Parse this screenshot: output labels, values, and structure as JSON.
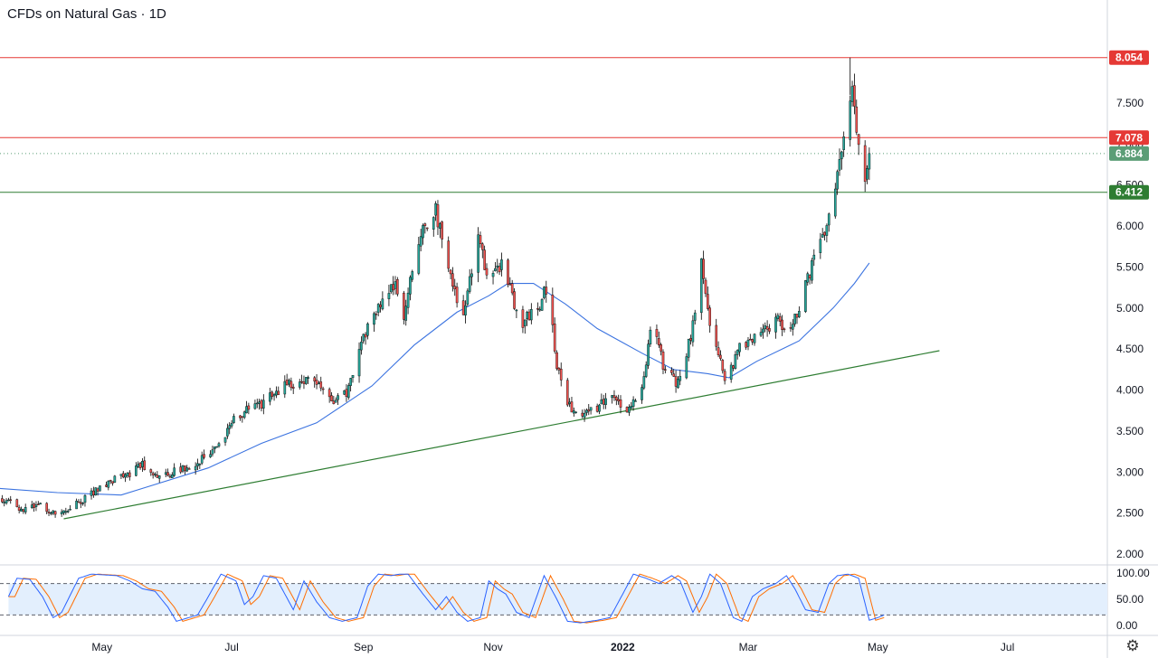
{
  "header": {
    "title": "CFDs on Natural Gas · 1D"
  },
  "colors": {
    "up": "#26a69a",
    "down": "#ef5350",
    "ma": "#3b73e0",
    "trend": "#2e7d32",
    "resistance": "#e53935",
    "support": "#2e7d32",
    "last": "#5b9d76",
    "stoch_k": "#2962ff",
    "stoch_d": "#ff6d00",
    "grid": "#e0e3eb",
    "text": "#131722"
  },
  "chart_data": [
    {
      "type": "candlestick",
      "symbol": "CFDs on Natural Gas",
      "interval": "1D",
      "ylim": [
        2.0,
        8.5
      ],
      "y_ticks": [
        "2.000",
        "2.500",
        "3.000",
        "3.500",
        "4.000",
        "4.500",
        "5.000",
        "5.500",
        "6.000",
        "6.500",
        "7.000",
        "7.500"
      ],
      "x_ticks": [
        {
          "date": "2021-05-01",
          "label": "May"
        },
        {
          "date": "2021-07-01",
          "label": "Jul"
        },
        {
          "date": "2021-09-01",
          "label": "Sep"
        },
        {
          "date": "2021-11-01",
          "label": "Nov"
        },
        {
          "date": "2022-01-01",
          "label": "2022"
        },
        {
          "date": "2022-03-01",
          "label": "Mar"
        },
        {
          "date": "2022-05-01",
          "label": "May"
        },
        {
          "date": "2022-07-01",
          "label": "Jul"
        }
      ],
      "xlim": [
        "2021-03-14",
        "2022-08-17"
      ],
      "price_path": [
        [
          "2021-03-14",
          2.68
        ],
        [
          "2021-03-25",
          2.55
        ],
        [
          "2021-04-02",
          2.62
        ],
        [
          "2021-04-08",
          2.5
        ],
        [
          "2021-04-20",
          2.62
        ],
        [
          "2021-05-05",
          2.9
        ],
        [
          "2021-05-15",
          2.97
        ],
        [
          "2021-05-19",
          3.1
        ],
        [
          "2021-05-28",
          2.95
        ],
        [
          "2021-06-15",
          3.1
        ],
        [
          "2021-06-26",
          3.4
        ],
        [
          "2021-07-04",
          3.7
        ],
        [
          "2021-07-16",
          3.85
        ],
        [
          "2021-07-26",
          4.05
        ],
        [
          "2021-08-06",
          4.15
        ],
        [
          "2021-08-18",
          3.88
        ],
        [
          "2021-08-25",
          4.0
        ],
        [
          "2021-09-01",
          4.65
        ],
        [
          "2021-09-10",
          5.1
        ],
        [
          "2021-09-16",
          5.3
        ],
        [
          "2021-09-20",
          4.8
        ],
        [
          "2021-09-26",
          5.8
        ],
        [
          "2021-10-05",
          6.2
        ],
        [
          "2021-10-12",
          5.4
        ],
        [
          "2021-10-18",
          4.9
        ],
        [
          "2021-10-25",
          5.9
        ],
        [
          "2021-10-30",
          5.3
        ],
        [
          "2021-11-06",
          5.6
        ],
        [
          "2021-11-13",
          4.8
        ],
        [
          "2021-11-22",
          5.0
        ],
        [
          "2021-11-27",
          5.3
        ],
        [
          "2021-12-01",
          4.3
        ],
        [
          "2021-12-05",
          3.85
        ],
        [
          "2021-12-10",
          3.7
        ],
        [
          "2021-12-20",
          3.8
        ],
        [
          "2021-12-27",
          3.95
        ],
        [
          "2022-01-03",
          3.75
        ],
        [
          "2022-01-10",
          4.0
        ],
        [
          "2022-01-15",
          4.85
        ],
        [
          "2022-01-20",
          4.3
        ],
        [
          "2022-01-26",
          4.1
        ],
        [
          "2022-01-30",
          4.35
        ],
        [
          "2022-02-05",
          5.0
        ],
        [
          "2022-02-07",
          5.6
        ],
        [
          "2022-02-12",
          4.6
        ],
        [
          "2022-02-19",
          4.1
        ],
        [
          "2022-02-25",
          4.5
        ],
        [
          "2022-03-05",
          4.65
        ],
        [
          "2022-03-15",
          4.9
        ],
        [
          "2022-03-20",
          4.65
        ],
        [
          "2022-03-31",
          5.5
        ],
        [
          "2022-04-06",
          5.9
        ],
        [
          "2022-04-10",
          6.4
        ],
        [
          "2022-04-15",
          7.0
        ],
        [
          "2022-04-19",
          7.8
        ],
        [
          "2022-04-22",
          6.9
        ],
        [
          "2022-04-25",
          6.45
        ],
        [
          "2022-04-27",
          6.88
        ]
      ],
      "moving_average": [
        [
          "2021-03-14",
          2.8
        ],
        [
          "2021-04-10",
          2.75
        ],
        [
          "2021-05-10",
          2.72
        ],
        [
          "2021-05-20",
          2.8
        ],
        [
          "2021-06-20",
          3.05
        ],
        [
          "2021-07-15",
          3.35
        ],
        [
          "2021-08-10",
          3.6
        ],
        [
          "2021-09-05",
          4.05
        ],
        [
          "2021-09-25",
          4.55
        ],
        [
          "2021-10-15",
          4.95
        ],
        [
          "2021-10-30",
          5.15
        ],
        [
          "2021-11-08",
          5.3
        ],
        [
          "2021-11-20",
          5.3
        ],
        [
          "2021-12-05",
          5.05
        ],
        [
          "2021-12-20",
          4.75
        ],
        [
          "2022-01-10",
          4.45
        ],
        [
          "2022-01-25",
          4.25
        ],
        [
          "2022-02-10",
          4.2
        ],
        [
          "2022-02-20",
          4.15
        ],
        [
          "2022-03-05",
          4.35
        ],
        [
          "2022-03-25",
          4.6
        ],
        [
          "2022-04-10",
          5.0
        ],
        [
          "2022-04-20",
          5.3
        ],
        [
          "2022-04-27",
          5.55
        ]
      ],
      "trend_line": {
        "from": [
          "2021-04-13",
          2.43
        ],
        "to": [
          "2022-05-30",
          4.48
        ]
      },
      "levels": [
        {
          "name": "resistance",
          "value": 8.054,
          "label": "8.054"
        },
        {
          "name": "resistance",
          "value": 7.078,
          "label": "7.078"
        },
        {
          "name": "support",
          "value": 6.412,
          "label": "6.412"
        }
      ],
      "last_price": {
        "value": 6.884,
        "label": "6.884"
      },
      "peak": {
        "date": "2022-04-18",
        "value": 8.054
      }
    },
    {
      "type": "line",
      "name": "Stochastic",
      "ylim": [
        0,
        100
      ],
      "y_ticks": [
        "100.00",
        "50.00",
        "0.00"
      ],
      "bands": [
        80,
        20
      ],
      "stoch_path": [
        [
          "2021-03-18",
          55
        ],
        [
          "2021-03-22",
          90
        ],
        [
          "2021-03-28",
          88
        ],
        [
          "2021-04-03",
          55
        ],
        [
          "2021-04-08",
          15
        ],
        [
          "2021-04-12",
          25
        ],
        [
          "2021-04-20",
          90
        ],
        [
          "2021-04-26",
          98
        ],
        [
          "2021-05-08",
          95
        ],
        [
          "2021-05-14",
          85
        ],
        [
          "2021-05-20",
          70
        ],
        [
          "2021-05-26",
          65
        ],
        [
          "2021-06-01",
          35
        ],
        [
          "2021-06-05",
          8
        ],
        [
          "2021-06-15",
          20
        ],
        [
          "2021-06-20",
          55
        ],
        [
          "2021-06-26",
          98
        ],
        [
          "2021-07-03",
          85
        ],
        [
          "2021-07-07",
          40
        ],
        [
          "2021-07-11",
          55
        ],
        [
          "2021-07-16",
          95
        ],
        [
          "2021-07-22",
          90
        ],
        [
          "2021-07-30",
          30
        ],
        [
          "2021-08-04",
          85
        ],
        [
          "2021-08-10",
          45
        ],
        [
          "2021-08-16",
          15
        ],
        [
          "2021-08-22",
          8
        ],
        [
          "2021-08-29",
          15
        ],
        [
          "2021-09-03",
          75
        ],
        [
          "2021-09-08",
          98
        ],
        [
          "2021-09-14",
          95
        ],
        [
          "2021-09-18",
          98
        ],
        [
          "2021-09-22",
          98
        ],
        [
          "2021-09-29",
          60
        ],
        [
          "2021-10-05",
          30
        ],
        [
          "2021-10-10",
          55
        ],
        [
          "2021-10-15",
          25
        ],
        [
          "2021-10-20",
          8
        ],
        [
          "2021-10-26",
          15
        ],
        [
          "2021-10-30",
          85
        ],
        [
          "2021-11-03",
          70
        ],
        [
          "2021-11-07",
          60
        ],
        [
          "2021-11-12",
          25
        ],
        [
          "2021-11-18",
          15
        ],
        [
          "2021-11-25",
          95
        ],
        [
          "2021-12-01",
          50
        ],
        [
          "2021-12-06",
          8
        ],
        [
          "2021-12-12",
          5
        ],
        [
          "2021-12-20",
          10
        ],
        [
          "2021-12-26",
          15
        ],
        [
          "2022-01-01",
          60
        ],
        [
          "2022-01-06",
          98
        ],
        [
          "2022-01-12",
          90
        ],
        [
          "2022-01-18",
          80
        ],
        [
          "2022-01-24",
          95
        ],
        [
          "2022-01-28",
          85
        ],
        [
          "2022-02-03",
          25
        ],
        [
          "2022-02-07",
          55
        ],
        [
          "2022-02-11",
          98
        ],
        [
          "2022-02-16",
          80
        ],
        [
          "2022-02-22",
          15
        ],
        [
          "2022-02-26",
          8
        ],
        [
          "2022-03-03",
          55
        ],
        [
          "2022-03-08",
          70
        ],
        [
          "2022-03-14",
          80
        ],
        [
          "2022-03-19",
          95
        ],
        [
          "2022-03-23",
          70
        ],
        [
          "2022-03-28",
          30
        ],
        [
          "2022-04-03",
          25
        ],
        [
          "2022-04-08",
          80
        ],
        [
          "2022-04-12",
          95
        ],
        [
          "2022-04-17",
          98
        ],
        [
          "2022-04-22",
          90
        ],
        [
          "2022-04-27",
          10
        ],
        [
          "2022-05-01",
          15
        ],
        [
          "2022-05-04",
          20
        ]
      ]
    }
  ]
}
